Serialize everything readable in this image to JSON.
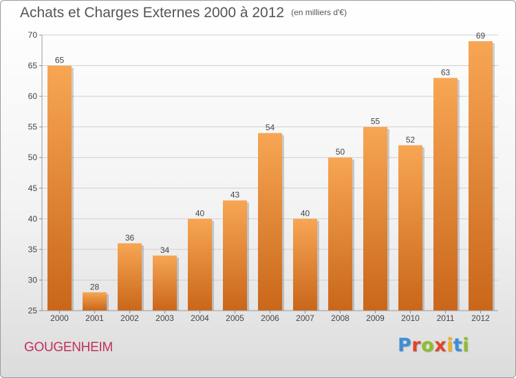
{
  "header": {
    "title": "Achats et Charges Externes 2000 à 2012",
    "subtitle": "(en milliers d'€)"
  },
  "footer": {
    "commune": "GOUGENHEIM",
    "brand_letters": [
      "P",
      "r",
      "o",
      "x",
      "i",
      "t",
      "i"
    ],
    "brand_colors": [
      "#3a8fd6",
      "#e0452b",
      "#8cbf2a",
      "#e0452b",
      "#f0b21c",
      "#3a8fd6",
      "#8cbf2a"
    ]
  },
  "colors": {
    "bar_top": "#f7a654",
    "bar_bottom": "#c9661a",
    "grid": "#cfcfcf",
    "axis_text": "#444444"
  },
  "chart_data": {
    "type": "bar",
    "categories": [
      "2000",
      "2001",
      "2002",
      "2003",
      "2004",
      "2005",
      "2006",
      "2007",
      "2008",
      "2009",
      "2010",
      "2011",
      "2012"
    ],
    "values": [
      65,
      28,
      36,
      34,
      40,
      43,
      54,
      40,
      50,
      55,
      52,
      63,
      69
    ],
    "title": "Achats et Charges Externes 2000 à 2012",
    "subtitle": "(en milliers d'€)",
    "xlabel": "",
    "ylabel": "",
    "ylim": [
      25,
      70
    ],
    "yticks": [
      25,
      30,
      35,
      40,
      45,
      50,
      55,
      60,
      65,
      70
    ],
    "grid": true,
    "data_labels": true
  }
}
